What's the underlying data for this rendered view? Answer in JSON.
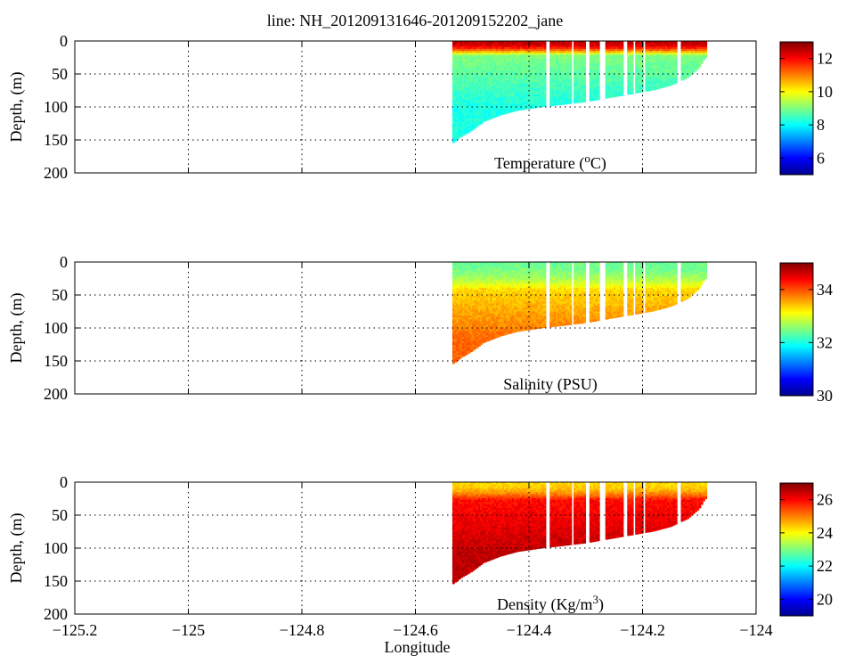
{
  "figure_title": "line: NH_201209131646-201209152202_jane",
  "chart_data": [
    {
      "type": "heatmap",
      "title": "Temperature (°C)",
      "label_main": "Temperature (",
      "label_sup": "o",
      "label_tail": "C)",
      "xlabel": "",
      "ylabel": "Depth, (m)",
      "xlim": [
        -125.2,
        -124.0
      ],
      "ylim": [
        200,
        0
      ],
      "x_ticks": [
        -125.2,
        -125,
        -124.8,
        -124.6,
        -124.4,
        -124.2,
        -124
      ],
      "y_ticks": [
        0,
        50,
        100,
        150,
        200
      ],
      "y_tick_labels": [
        "0",
        "50",
        "100",
        "150",
        "200"
      ],
      "grid": true,
      "colorbar": {
        "min": 5,
        "max": 13,
        "ticks": [
          6,
          8,
          10,
          12
        ],
        "tick_labels": [
          "6",
          "8",
          "10",
          "12"
        ]
      },
      "data_extent_lon": [
        -124.535,
        -124.09
      ],
      "bottom_profile": [
        [
          -124.535,
          155
        ],
        [
          -124.52,
          145
        ],
        [
          -124.5,
          135
        ],
        [
          -124.48,
          122
        ],
        [
          -124.45,
          112
        ],
        [
          -124.42,
          105
        ],
        [
          -124.38,
          100
        ],
        [
          -124.34,
          96
        ],
        [
          -124.3,
          92
        ],
        [
          -124.26,
          86
        ],
        [
          -124.22,
          80
        ],
        [
          -124.18,
          74
        ],
        [
          -124.15,
          67
        ],
        [
          -124.12,
          55
        ],
        [
          -124.1,
          40
        ],
        [
          -124.09,
          25
        ]
      ],
      "gaps_lon": [
        [
          -124.37,
          -124.362
        ],
        [
          -124.325,
          -124.32
        ],
        [
          -124.3,
          -124.292
        ],
        [
          -124.275,
          -124.265
        ],
        [
          -124.235,
          -124.228
        ],
        [
          -124.218,
          -124.212
        ],
        [
          -124.2,
          -124.194
        ],
        [
          -124.14,
          -124.132
        ]
      ],
      "profile": {
        "surface": 12.5,
        "mid": 9.0,
        "deep": 8.2,
        "thermocline_m": 20
      }
    },
    {
      "type": "heatmap",
      "title": "Salinity (PSU)",
      "label_main": "Salinity (PSU)",
      "label_sup": "",
      "label_tail": "",
      "xlabel": "",
      "ylabel": "Depth, (m)",
      "xlim": [
        -125.2,
        -124.0
      ],
      "ylim": [
        200,
        0
      ],
      "x_ticks": [
        -125.2,
        -125,
        -124.8,
        -124.6,
        -124.4,
        -124.2,
        -124
      ],
      "y_ticks": [
        0,
        50,
        100,
        150,
        200
      ],
      "y_tick_labels": [
        "0",
        "50",
        "100",
        "150",
        "200"
      ],
      "grid": true,
      "colorbar": {
        "min": 30,
        "max": 35,
        "ticks": [
          30,
          32,
          34
        ],
        "tick_labels": [
          "30",
          "32",
          "34"
        ]
      },
      "data_extent_lon": [
        -124.535,
        -124.09
      ],
      "bottom_profile": [
        [
          -124.535,
          155
        ],
        [
          -124.52,
          145
        ],
        [
          -124.5,
          135
        ],
        [
          -124.48,
          122
        ],
        [
          -124.45,
          112
        ],
        [
          -124.42,
          105
        ],
        [
          -124.38,
          100
        ],
        [
          -124.34,
          96
        ],
        [
          -124.3,
          92
        ],
        [
          -124.26,
          86
        ],
        [
          -124.22,
          80
        ],
        [
          -124.18,
          74
        ],
        [
          -124.15,
          67
        ],
        [
          -124.12,
          55
        ],
        [
          -124.1,
          40
        ],
        [
          -124.09,
          25
        ]
      ],
      "gaps_lon": [
        [
          -124.37,
          -124.362
        ],
        [
          -124.325,
          -124.32
        ],
        [
          -124.3,
          -124.292
        ],
        [
          -124.275,
          -124.265
        ],
        [
          -124.235,
          -124.228
        ],
        [
          -124.218,
          -124.212
        ],
        [
          -124.2,
          -124.194
        ],
        [
          -124.14,
          -124.132
        ]
      ],
      "profile": {
        "surface": 32.4,
        "mid": 33.3,
        "deep": 33.9,
        "thermocline_m": 40
      }
    },
    {
      "type": "heatmap",
      "title": "Density (Kg/m³)",
      "label_main": "Density (Kg/m",
      "label_sup": "3",
      "label_tail": ")",
      "xlabel": "Longitude",
      "ylabel": "Depth, (m)",
      "xlim": [
        -125.2,
        -124.0
      ],
      "ylim": [
        200,
        0
      ],
      "x_ticks": [
        -125.2,
        -125,
        -124.8,
        -124.6,
        -124.4,
        -124.2,
        -124
      ],
      "x_tick_labels": [
        "−125.2",
        "−125",
        "−124.8",
        "−124.6",
        "−124.4",
        "−124.2",
        "−124"
      ],
      "y_ticks": [
        0,
        50,
        100,
        150,
        200
      ],
      "y_tick_labels": [
        "0",
        "50",
        "100",
        "150",
        "200"
      ],
      "grid": true,
      "colorbar": {
        "min": 19,
        "max": 27,
        "ticks": [
          20,
          22,
          24,
          26
        ],
        "tick_labels": [
          "20",
          "22",
          "24",
          "26"
        ]
      },
      "data_extent_lon": [
        -124.535,
        -124.09
      ],
      "bottom_profile": [
        [
          -124.535,
          155
        ],
        [
          -124.52,
          145
        ],
        [
          -124.5,
          135
        ],
        [
          -124.48,
          122
        ],
        [
          -124.45,
          112
        ],
        [
          -124.42,
          105
        ],
        [
          -124.38,
          100
        ],
        [
          -124.34,
          96
        ],
        [
          -124.3,
          92
        ],
        [
          -124.26,
          86
        ],
        [
          -124.22,
          80
        ],
        [
          -124.18,
          74
        ],
        [
          -124.15,
          67
        ],
        [
          -124.12,
          55
        ],
        [
          -124.1,
          40
        ],
        [
          -124.09,
          25
        ]
      ],
      "gaps_lon": [
        [
          -124.37,
          -124.362
        ],
        [
          -124.325,
          -124.32
        ],
        [
          -124.3,
          -124.292
        ],
        [
          -124.275,
          -124.265
        ],
        [
          -124.235,
          -124.228
        ],
        [
          -124.218,
          -124.212
        ],
        [
          -124.2,
          -124.194
        ],
        [
          -124.14,
          -124.132
        ]
      ],
      "profile": {
        "surface": 24.3,
        "mid": 25.9,
        "deep": 26.5,
        "thermocline_m": 25
      }
    }
  ]
}
